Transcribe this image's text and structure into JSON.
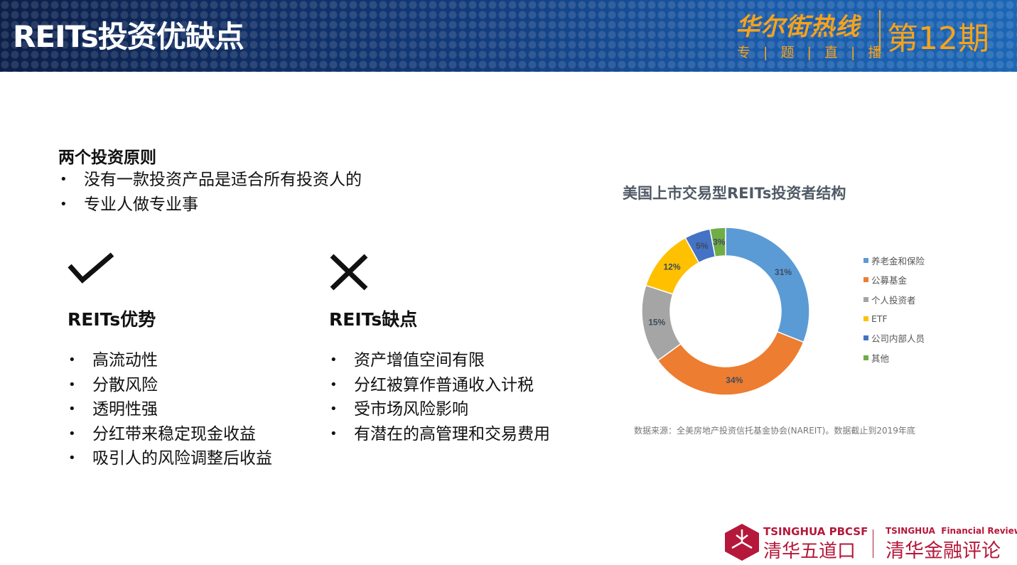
{
  "header": {
    "title": "REITs投资优缺点",
    "brand_main": "华尔街热线",
    "brand_sub": "专 | 题 | 直 | 播",
    "issue": "第12期"
  },
  "principles": {
    "heading": "两个投资原则",
    "items": [
      "没有一款投资产品是适合所有投资人的",
      "专业人做专业事"
    ]
  },
  "pros": {
    "icon": "check-icon",
    "heading": "REITs优势",
    "items": [
      "高流动性",
      "分散风险",
      "透明性强",
      "分红带来稳定现金收益",
      "吸引人的风险调整后收益"
    ]
  },
  "cons": {
    "icon": "x-icon",
    "heading": "REITs缺点",
    "items": [
      "资产增值空间有限",
      "分红被算作普通收入计税",
      "受市场风险影响",
      "有潜在的高管理和交易费用"
    ]
  },
  "chart_data": {
    "type": "pie",
    "donut": true,
    "title": "美国上市交易型REITs投资者结构",
    "categories": [
      "养老金和保险",
      "公募基金",
      "个人投资者",
      "ETF",
      "公司内部人员",
      "其他"
    ],
    "values": [
      31,
      34,
      15,
      12,
      5,
      3
    ],
    "labels": [
      "31%",
      "34%",
      "15%",
      "12%",
      "5%",
      "3%"
    ],
    "colors": [
      "#5b9bd5",
      "#ed7d31",
      "#a5a5a5",
      "#ffc000",
      "#4472c4",
      "#70ad47"
    ],
    "legend": "right"
  },
  "source": "数据来源：全美房地产投资信托基金协会(NAREIT)。数据截止到2019年底",
  "footer": {
    "logo1_en": "TSINGHUA PBCSF",
    "logo1_cn": "清华五道口",
    "logo2_en": "TSINGHUA  Financial Review",
    "logo2_cn": "清华金融评论",
    "color": "#b5183a"
  }
}
